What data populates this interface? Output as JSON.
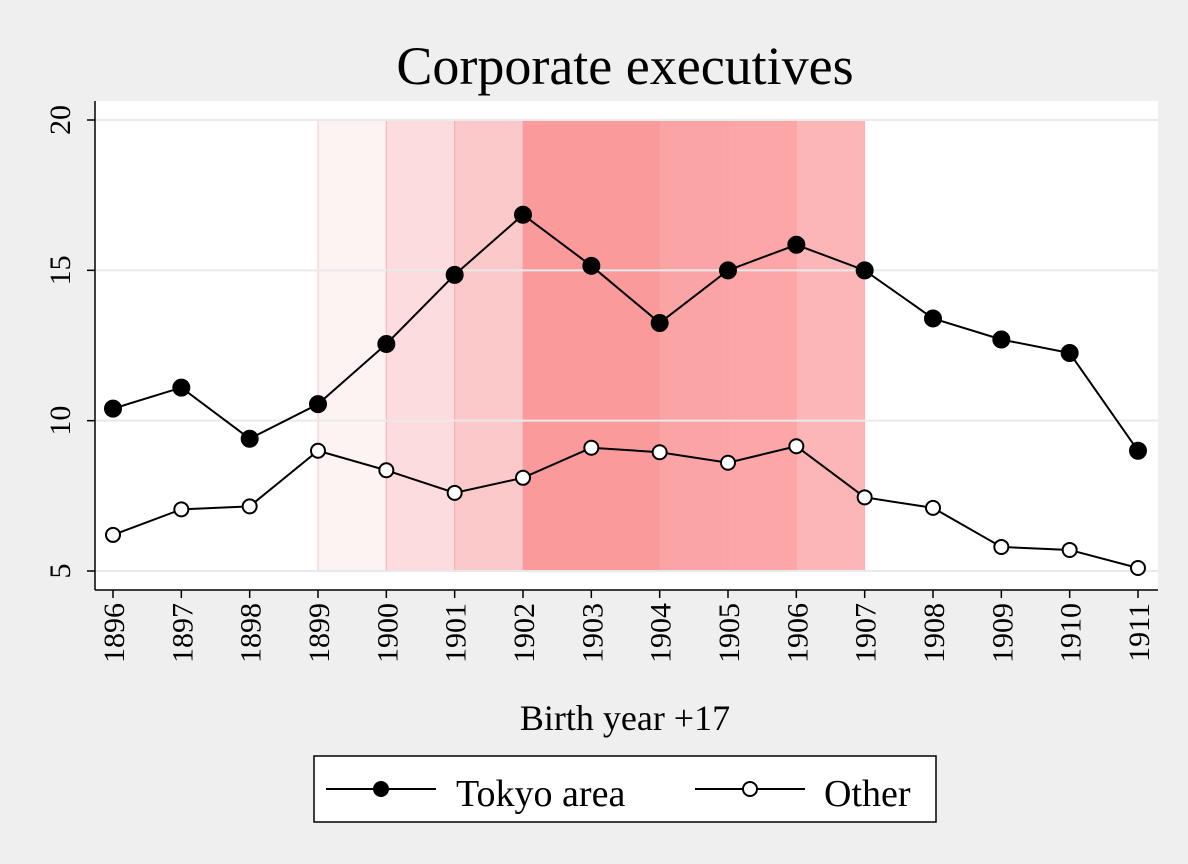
{
  "chart_data": {
    "type": "line",
    "title": "Corporate executives",
    "xlabel": "Birth year +17",
    "ylabel": "",
    "x": [
      1896,
      1897,
      1898,
      1899,
      1900,
      1901,
      1902,
      1903,
      1904,
      1905,
      1906,
      1907,
      1908,
      1909,
      1910,
      1911
    ],
    "xlim": [
      1896,
      1911
    ],
    "ylim": [
      5,
      20
    ],
    "yticks": [
      5,
      10,
      15,
      20
    ],
    "grid": true,
    "legend_position": "bottom",
    "series": [
      {
        "name": "Tokyo area",
        "marker": "filled-circle",
        "values": [
          10.4,
          11.1,
          9.4,
          10.55,
          12.55,
          14.85,
          16.85,
          15.15,
          13.25,
          15.0,
          15.85,
          15.0,
          13.4,
          12.7,
          12.25,
          9.0
        ]
      },
      {
        "name": "Other",
        "marker": "hollow-circle",
        "values": [
          6.2,
          7.05,
          7.15,
          9.0,
          8.35,
          7.6,
          8.1,
          9.1,
          8.95,
          8.6,
          9.15,
          7.45,
          7.1,
          5.8,
          5.7,
          5.1
        ]
      }
    ],
    "shaded_bands": [
      {
        "from": 1899,
        "to": 1900,
        "color": "#fdf3f3"
      },
      {
        "from": 1900,
        "to": 1901,
        "color": "#fcdcde"
      },
      {
        "from": 1901,
        "to": 1902,
        "color": "#fcc9cb"
      },
      {
        "from": 1902,
        "to": 1904,
        "color": "#fb9a9b"
      },
      {
        "from": 1904,
        "to": 1905,
        "color": "#fba4a5"
      },
      {
        "from": 1905,
        "to": 1906,
        "color": "#fca6a7"
      },
      {
        "from": 1906,
        "to": 1907,
        "color": "#fcb6b8"
      }
    ]
  },
  "colors": {
    "background": "#efefef",
    "plot_background": "#ffffff",
    "line": "#000000",
    "grid": "#e9e9e9"
  }
}
